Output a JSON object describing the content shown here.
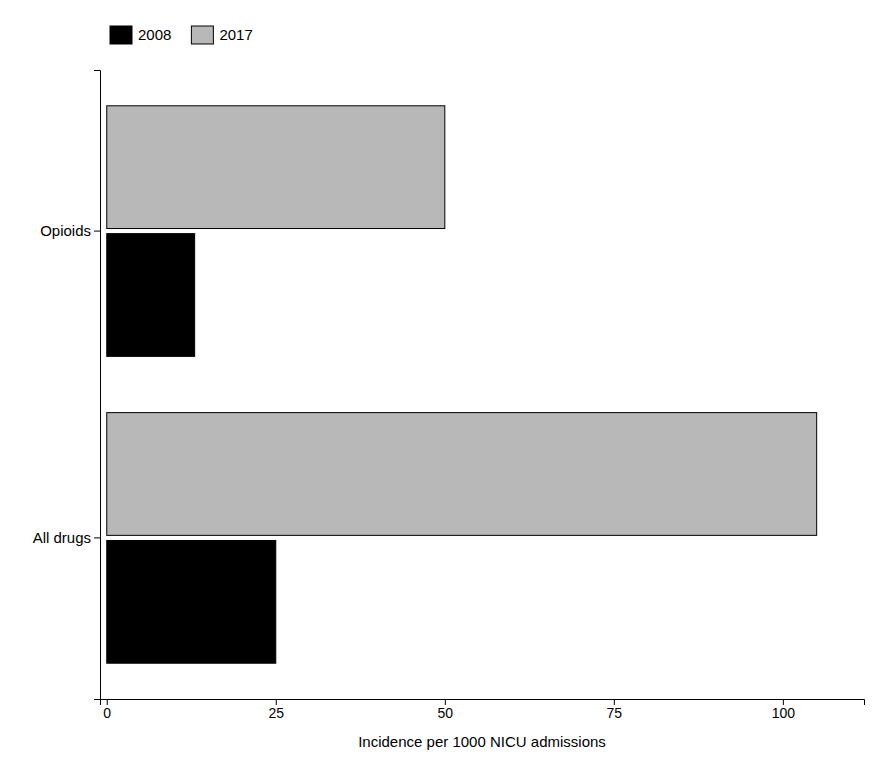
{
  "chart_data": {
    "type": "bar",
    "orientation": "horizontal",
    "categories": [
      "All drugs",
      "Opioids"
    ],
    "series": [
      {
        "name": "2008",
        "color": "#000000",
        "values": [
          25,
          13
        ]
      },
      {
        "name": "2017",
        "color": "#b8b8b8",
        "values": [
          105,
          50
        ]
      }
    ],
    "xlabel": "Incidence per 1000 NICU admissions",
    "xlim": [
      -1,
      112
    ],
    "xticks": [
      0,
      25,
      50,
      75,
      100
    ],
    "grid": false,
    "legend": "top-left"
  }
}
